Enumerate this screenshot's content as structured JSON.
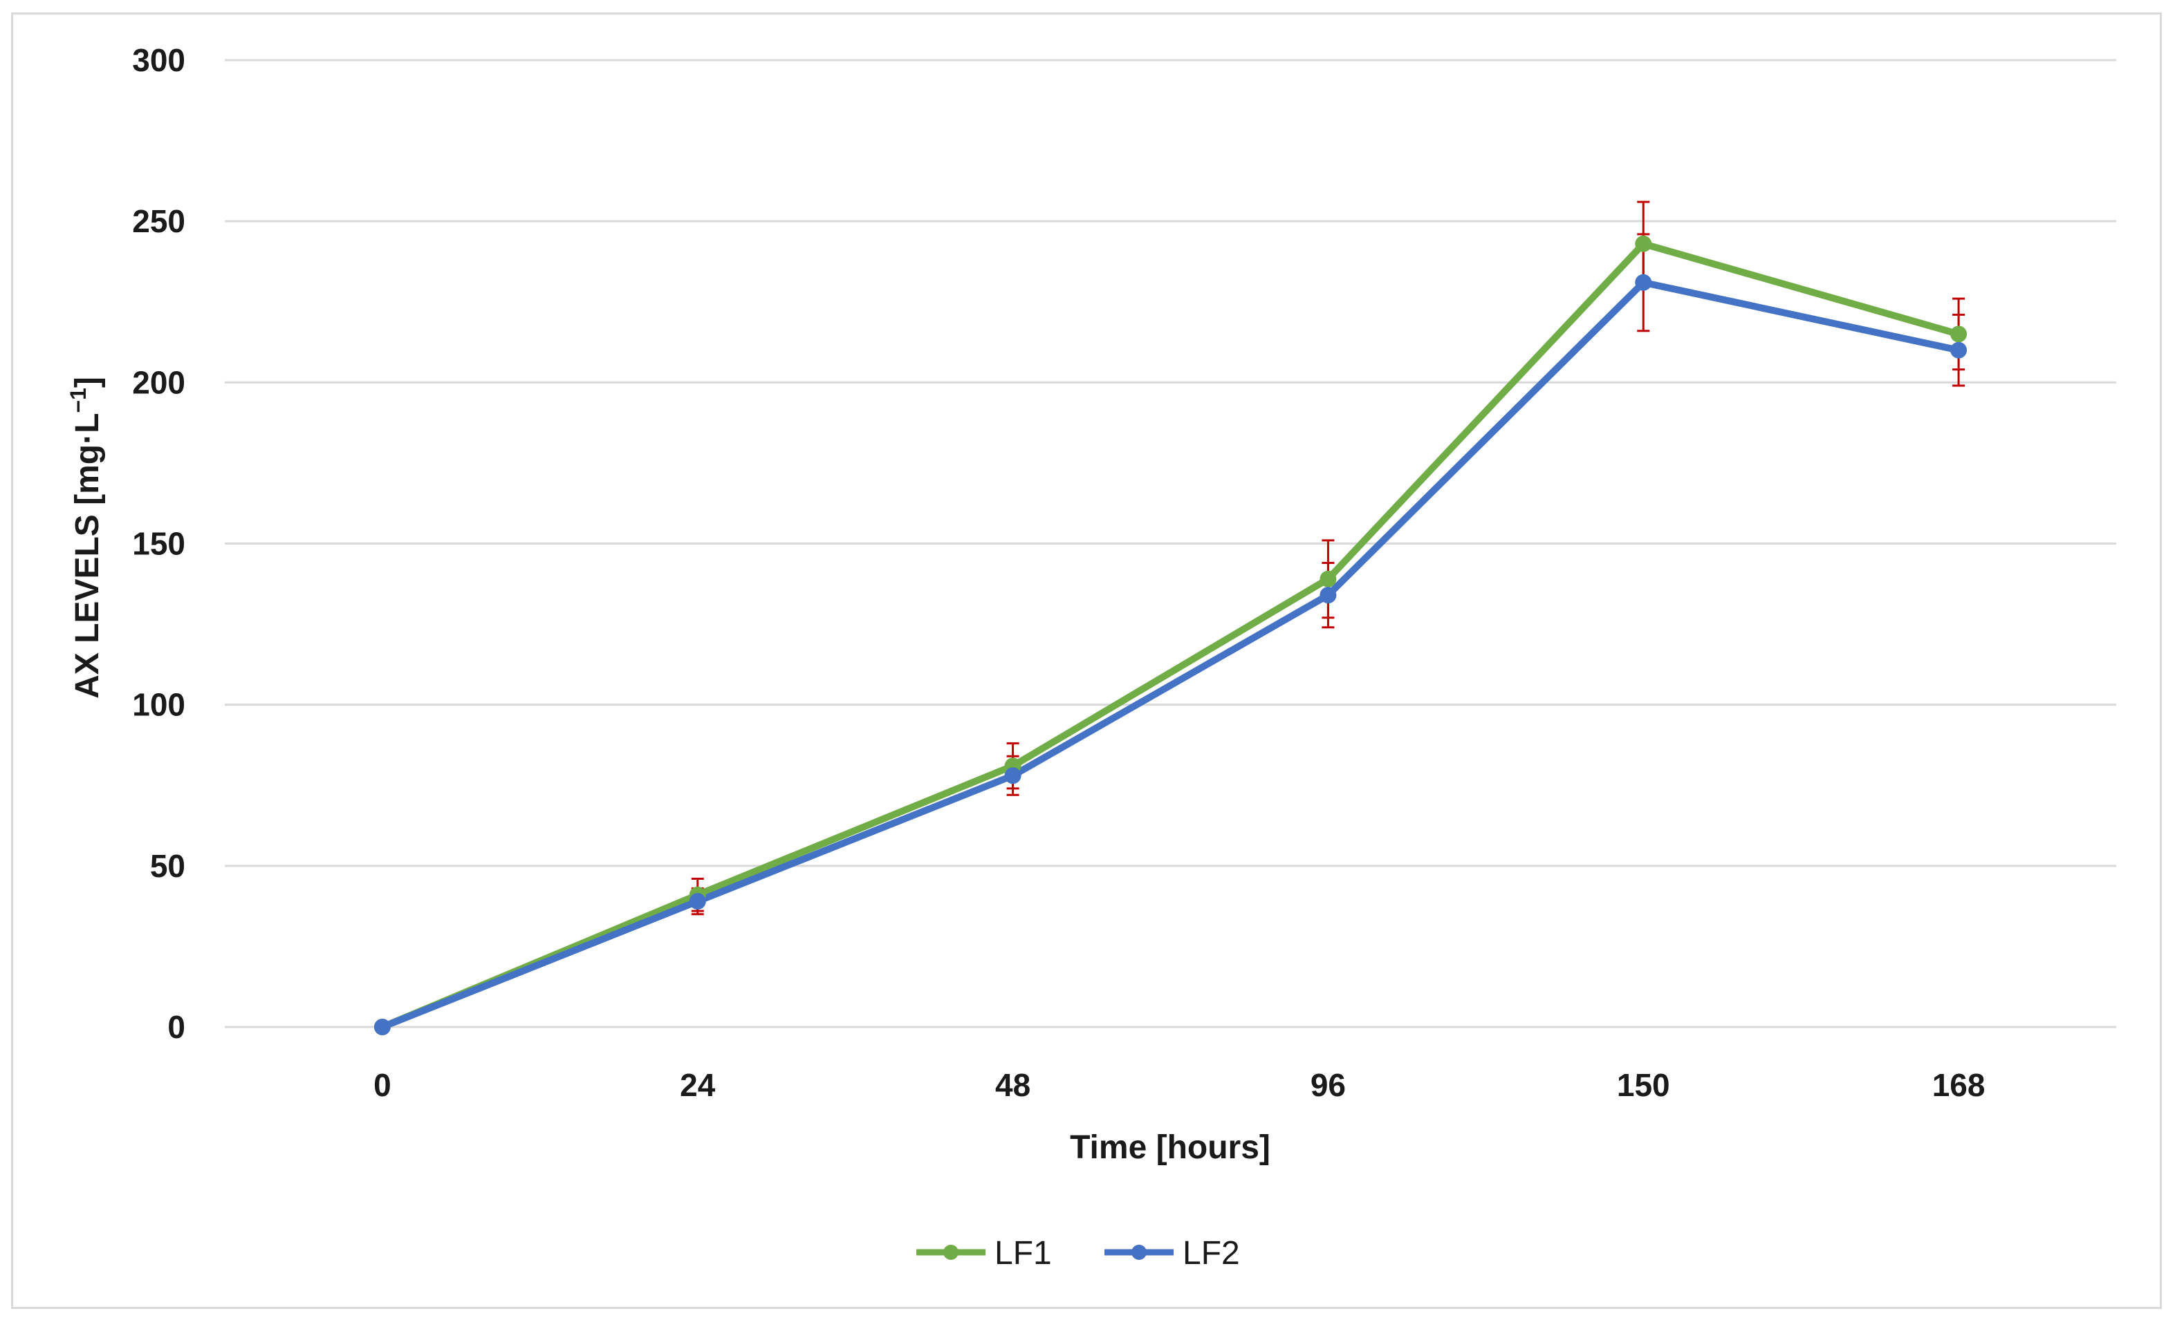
{
  "chart_data": {
    "type": "line",
    "categories": [
      "0",
      "24",
      "48",
      "96",
      "150",
      "168"
    ],
    "xlabel": "Time [hours]",
    "ylabel_main": "AX LEVELS [mg·L",
    "ylabel_sup": "−1",
    "ylabel_close": "]",
    "ylim": [
      0,
      300
    ],
    "yticks": [
      0,
      50,
      100,
      150,
      200,
      250,
      300
    ],
    "grid": true,
    "legend_position": "bottom",
    "series": [
      {
        "name": "LF1",
        "color": "#70ad47",
        "values": [
          0,
          41,
          81,
          139,
          243,
          215
        ],
        "err": [
          0,
          5,
          7,
          12,
          13,
          11
        ]
      },
      {
        "name": "LF2",
        "color": "#4472c4",
        "values": [
          0,
          39,
          78,
          134,
          231,
          210
        ],
        "err": [
          0,
          4,
          6,
          10,
          15,
          11
        ]
      }
    ],
    "error_bar_color": "#c00000"
  }
}
